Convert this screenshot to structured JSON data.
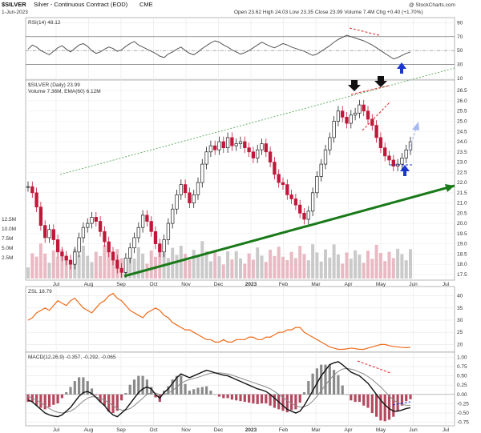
{
  "header": {
    "symbol": "$SILVER",
    "name": "Silver - Continuous Contract (EOD)",
    "exchange": "CME",
    "date": "1-Jun-2023",
    "ohlc": "Open 23.62  High 24.03  Low 23.35  Close 23.99  Volume 7.4M  Chg +0.40 (+1.70%)",
    "watermark": "@ StockCharts.com"
  },
  "colors": {
    "up": "#222222",
    "down": "#c0183a",
    "rsi": "#555555",
    "zsl": "#ee6a1a",
    "macd": "#111111",
    "signal": "#888888",
    "trend": "#1a7a1a",
    "channel": "#5aa95a",
    "annot_red": "#e02020",
    "arrow_blue": "#1a36d0",
    "arrow_light": "#a8b8f0"
  },
  "chart_data": [
    {
      "type": "line",
      "panel": "rsi",
      "title": "RSI(14) 48.12",
      "y_ticks": [
        10,
        30,
        50,
        70,
        90
      ],
      "ylim": [
        10,
        95
      ],
      "levels": [
        30,
        70
      ],
      "values": [
        52,
        58,
        55,
        50,
        47,
        44,
        49,
        54,
        57,
        52,
        48,
        53,
        58,
        60,
        56,
        50,
        46,
        48,
        52,
        55,
        53,
        49,
        51,
        56,
        60,
        63,
        58,
        55,
        52,
        49,
        46,
        42,
        40,
        45,
        48,
        52,
        55,
        50,
        46,
        44,
        48,
        53,
        57,
        61,
        64,
        62,
        58,
        55,
        51,
        48,
        45,
        47,
        50,
        54,
        58,
        62,
        59,
        56,
        54,
        57,
        60,
        58,
        55,
        53,
        51,
        49,
        46,
        43,
        45,
        49,
        53,
        57,
        62,
        66,
        69,
        72,
        70,
        68,
        66,
        64,
        61,
        58,
        54,
        50,
        46,
        42,
        38,
        40,
        43,
        46,
        48
      ]
    },
    {
      "type": "candlestick",
      "panel": "price",
      "title": "$SILVER (Daily) 23.99",
      "volume_label": "Volume 7.36M, EMA(60) 6.12M",
      "x_ticks": [
        "Jul",
        "Aug",
        "Sep",
        "Oct",
        "Nov",
        "Dec",
        "2023",
        "Feb",
        "Mar",
        "Apr",
        "May",
        "Jun",
        "Jul"
      ],
      "y_ticks": [
        17.5,
        18.0,
        18.5,
        19.0,
        19.5,
        20.0,
        20.5,
        21.0,
        21.5,
        22.0,
        22.5,
        23.0,
        23.5,
        24.0,
        24.5,
        25.0,
        25.5,
        26.0,
        26.5
      ],
      "ylim": [
        17.3,
        26.9
      ],
      "volume_ticks": [
        "12.5M",
        "10.0M",
        "7.5M",
        "5.0M",
        "2.5M"
      ],
      "close": [
        21.8,
        21.5,
        20.8,
        19.9,
        19.3,
        19.7,
        19.2,
        18.6,
        18.4,
        18.2,
        18.0,
        18.6,
        19.3,
        19.8,
        20.0,
        20.3,
        20.1,
        19.6,
        19.1,
        18.6,
        18.2,
        17.8,
        17.6,
        18.3,
        18.8,
        19.3,
        19.8,
        20.4,
        20.1,
        19.6,
        19.0,
        18.6,
        19.2,
        20.0,
        20.7,
        21.4,
        21.9,
        21.5,
        21.0,
        21.4,
        22.0,
        22.9,
        23.5,
        23.8,
        23.6,
        24.0,
        23.7,
        24.2,
        23.8,
        23.9,
        24.0,
        23.7,
        23.5,
        23.2,
        23.6,
        23.9,
        23.5,
        23.0,
        22.4,
        22.0,
        21.9,
        21.4,
        21.2,
        20.9,
        20.5,
        20.2,
        20.6,
        21.5,
        22.3,
        22.9,
        23.6,
        24.2,
        25.0,
        25.5,
        25.2,
        24.9,
        25.3,
        25.4,
        25.8,
        25.5,
        25.1,
        24.8,
        24.2,
        23.7,
        23.3,
        23.1,
        22.8,
        22.9,
        23.2,
        23.6,
        23.99
      ]
    },
    {
      "type": "line",
      "panel": "zsl",
      "title": "ZSL 18.79",
      "y_ticks": [
        20,
        25,
        30,
        35,
        40
      ],
      "ylim": [
        17.5,
        42.5
      ],
      "values": [
        30,
        31,
        33,
        34,
        35,
        34,
        36,
        38,
        37,
        36,
        38,
        39,
        37,
        35,
        34,
        33,
        35,
        37,
        38,
        40,
        41,
        39,
        38,
        36,
        34,
        33,
        32,
        31,
        33,
        34,
        35,
        34,
        32,
        31,
        29,
        28,
        27,
        26,
        26,
        25,
        24,
        23,
        22,
        22,
        21,
        21,
        22,
        21,
        21,
        22,
        22,
        22,
        23,
        23,
        22,
        22,
        23,
        23,
        24,
        25,
        25,
        26,
        26,
        27,
        27,
        25,
        24,
        23,
        22,
        21,
        20,
        19,
        18.5,
        18,
        18,
        18.2,
        18.5,
        18.3,
        18,
        18,
        18.5,
        19,
        19.5,
        20,
        20,
        19.5,
        19.2,
        19,
        18.8,
        18.7,
        18.79
      ]
    },
    {
      "type": "line",
      "panel": "macd",
      "title": "MACD(12,26,9) -0.357, -0.292, -0.065",
      "y_ticks": [
        -0.75,
        -0.5,
        -0.25,
        0.0,
        0.25,
        0.5,
        0.75,
        1.0
      ],
      "ylim": [
        -0.8,
        1.05
      ],
      "series": [
        {
          "name": "MACD",
          "values": [
            -0.15,
            -0.2,
            -0.3,
            -0.4,
            -0.5,
            -0.55,
            -0.58,
            -0.6,
            -0.55,
            -0.45,
            -0.35,
            -0.2,
            -0.05,
            0.05,
            0.08,
            0.02,
            -0.08,
            -0.2,
            -0.3,
            -0.45,
            -0.55,
            -0.6,
            -0.5,
            -0.4,
            -0.25,
            -0.1,
            0.05,
            0.15,
            0.2,
            0.15,
            0.0,
            -0.1,
            0.05,
            0.15,
            0.3,
            0.45,
            0.55,
            0.5,
            0.45,
            0.5,
            0.55,
            0.6,
            0.65,
            0.62,
            0.58,
            0.55,
            0.52,
            0.5,
            0.45,
            0.4,
            0.35,
            0.3,
            0.25,
            0.2,
            0.15,
            0.12,
            0.08,
            0.0,
            -0.1,
            -0.2,
            -0.3,
            -0.4,
            -0.45,
            -0.5,
            -0.45,
            -0.3,
            -0.1,
            0.1,
            0.3,
            0.5,
            0.65,
            0.8,
            0.85,
            0.88,
            0.8,
            0.7,
            0.6,
            0.55,
            0.5,
            0.4,
            0.3,
            0.15,
            0.0,
            -0.15,
            -0.28,
            -0.38,
            -0.45,
            -0.45,
            -0.42,
            -0.38,
            -0.357
          ]
        },
        {
          "name": "Signal",
          "values": [
            -0.05,
            -0.1,
            -0.15,
            -0.22,
            -0.3,
            -0.38,
            -0.44,
            -0.48,
            -0.5,
            -0.48,
            -0.45,
            -0.38,
            -0.28,
            -0.18,
            -0.1,
            -0.06,
            -0.07,
            -0.1,
            -0.15,
            -0.22,
            -0.3,
            -0.38,
            -0.42,
            -0.42,
            -0.38,
            -0.3,
            -0.2,
            -0.1,
            0.0,
            0.05,
            0.04,
            0.0,
            0.0,
            0.04,
            0.1,
            0.2,
            0.3,
            0.36,
            0.4,
            0.43,
            0.46,
            0.5,
            0.54,
            0.57,
            0.58,
            0.58,
            0.57,
            0.55,
            0.52,
            0.48,
            0.44,
            0.4,
            0.36,
            0.32,
            0.28,
            0.24,
            0.2,
            0.15,
            0.08,
            0.0,
            -0.08,
            -0.16,
            -0.24,
            -0.3,
            -0.34,
            -0.33,
            -0.28,
            -0.18,
            -0.05,
            0.1,
            0.25,
            0.4,
            0.52,
            0.62,
            0.68,
            0.7,
            0.68,
            0.65,
            0.6,
            0.55,
            0.48,
            0.4,
            0.3,
            0.2,
            0.08,
            -0.04,
            -0.15,
            -0.22,
            -0.27,
            -0.29,
            -0.292
          ]
        }
      ]
    }
  ]
}
